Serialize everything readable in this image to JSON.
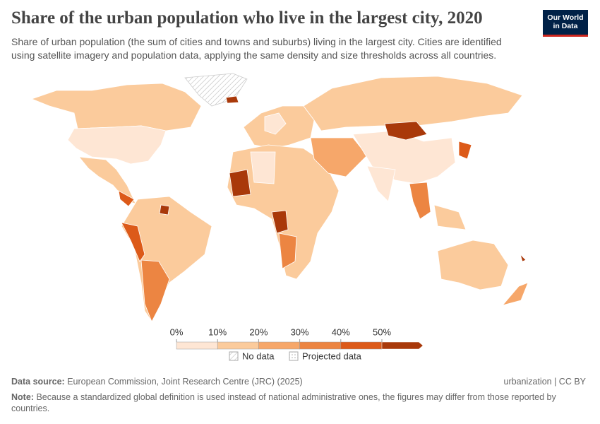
{
  "header": {
    "title": "Share of the urban population who live in the largest city, 2020",
    "subtitle": "Share of urban population (the sum of cities and towns and suburbs) living in the largest city. Cities are identified using satellite imagery and population data, applying the same density and size thresholds across all countries.",
    "logo": [
      "Our World",
      "in Data"
    ]
  },
  "legend": {
    "labels": [
      "0%",
      "10%",
      "20%",
      "30%",
      "40%",
      "50%"
    ],
    "colors": [
      "#fee6d4",
      "#fbcb9c",
      "#f6a76a",
      "#ec8542",
      "#dc5a19",
      "#a9390a"
    ],
    "no_data": "No data",
    "projected": "Projected data"
  },
  "footer": {
    "source_label": "Data source:",
    "source": "European Commission, Joint Research Centre (JRC) (2025)",
    "license": "urbanization | CC BY",
    "note_label": "Note:",
    "note": "Because a standardized global definition is used instead of national administrative ones, the figures may differ from those reported by countries."
  }
}
